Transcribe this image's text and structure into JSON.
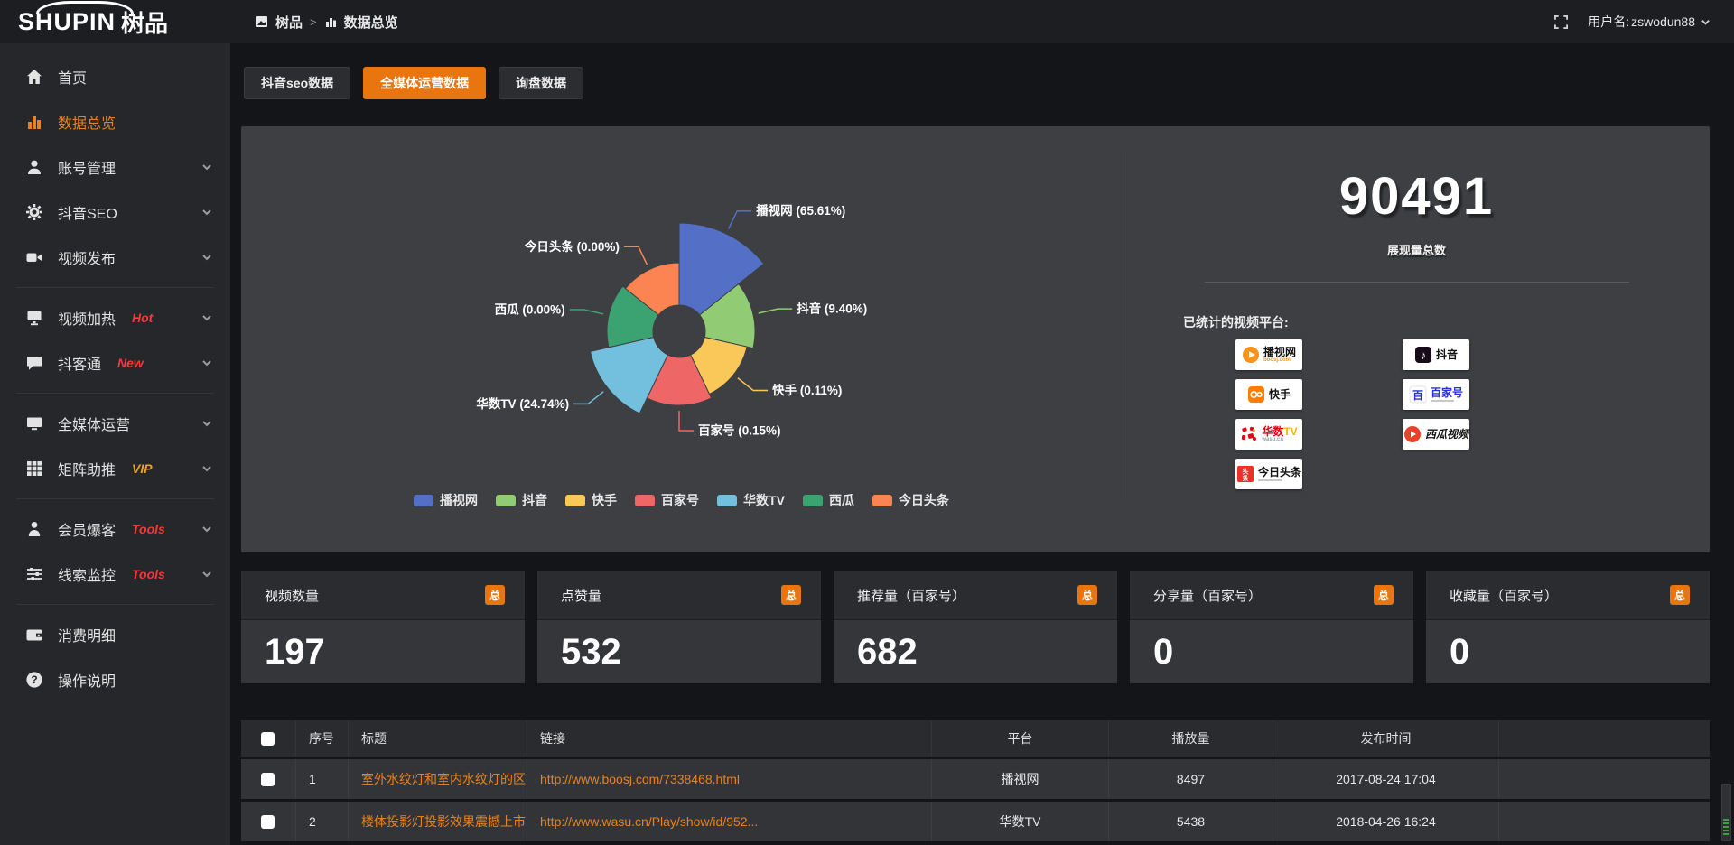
{
  "topbar": {
    "logo_main": "SHUPIN",
    "logo_cn": "树品",
    "breadcrumb": [
      "树品",
      "数据总览"
    ],
    "username_label": "用户名: ",
    "username": "zswodun88"
  },
  "sidebar": {
    "items": [
      {
        "icon": "home",
        "label": "首页"
      },
      {
        "icon": "chart",
        "label": "数据总览",
        "active": true
      },
      {
        "icon": "user",
        "label": "账号管理",
        "chevron": true
      },
      {
        "icon": "gear",
        "label": "抖音SEO",
        "chevron": true
      },
      {
        "icon": "video",
        "label": "视频发布",
        "chevron": true,
        "divider_after": true
      },
      {
        "icon": "screen",
        "label": "视频加热",
        "badge": "Hot",
        "badge_color": "#f23a3a",
        "chevron": true
      },
      {
        "icon": "chat",
        "label": "抖客通",
        "badge": "New",
        "badge_color": "#f23a3a",
        "chevron": true,
        "divider_after": true
      },
      {
        "icon": "monitor",
        "label": "全媒体运营",
        "chevron": true
      },
      {
        "icon": "grid",
        "label": "矩阵助推",
        "badge": "VIP",
        "badge_color": "#f0a020",
        "chevron": true,
        "divider_after": true
      },
      {
        "icon": "person",
        "label": "会员爆客",
        "badge": "Tools",
        "badge_color": "#f23a3a",
        "chevron": true
      },
      {
        "icon": "sliders",
        "label": "线索监控",
        "badge": "Tools",
        "badge_color": "#f23a3a",
        "chevron": true,
        "divider_after": true
      },
      {
        "icon": "wallet",
        "label": "消费明细"
      },
      {
        "icon": "help",
        "label": "操作说明"
      }
    ]
  },
  "tabs": [
    {
      "label": "抖音seo数据",
      "active": false
    },
    {
      "label": "全媒体运营数据",
      "active": true
    },
    {
      "label": "询盘数据",
      "active": false
    }
  ],
  "chart_data": {
    "type": "pie",
    "rose": true,
    "legend_position": "bottom",
    "items": [
      {
        "name": "播视网",
        "value": 65.61,
        "color": "#5470c6",
        "radius": 120
      },
      {
        "name": "抖音",
        "value": 9.4,
        "color": "#91cc75",
        "radius": 84
      },
      {
        "name": "快手",
        "value": 0.11,
        "color": "#fac858",
        "radius": 77
      },
      {
        "name": "百家号",
        "value": 0.15,
        "color": "#ee6666",
        "radius": 82
      },
      {
        "name": "华数TV",
        "value": 24.74,
        "color": "#73c0de",
        "radius": 101
      },
      {
        "name": "西瓜",
        "value": 0.0,
        "color": "#3ba272",
        "radius": 80
      },
      {
        "name": "今日头条",
        "value": 0.0,
        "color": "#fc8452",
        "radius": 76
      }
    ]
  },
  "overview": {
    "total": "90491",
    "total_caption": "展现量总数",
    "platforms_title": "已统计的视频平台:",
    "platform_cols": [
      [
        {
          "id": "boosj",
          "label": "播视网",
          "label_color": "#111111",
          "sub": "boosj.com",
          "sub_color": "#f7941d"
        },
        {
          "id": "kuaishou",
          "label": "快手",
          "label_color": "#111111"
        },
        {
          "id": "wasu",
          "label_parts": [
            {
              "text": "华数",
              "color": "#e60012"
            },
            {
              "text": "TV",
              "color": "#f5b301"
            }
          ],
          "sub": "wasu.cn",
          "sub_color": "#9aa0a6"
        },
        {
          "id": "toutiao",
          "label": "今日头条",
          "label_color": "#111111",
          "fine_print": true
        }
      ],
      [
        {
          "id": "douyin",
          "label": "抖音",
          "label_color": "#111111"
        },
        {
          "id": "baijia",
          "label": "百家号",
          "label_color": "#2932e1",
          "fine_print": true
        },
        {
          "id": "xigua",
          "label": "西瓜视频",
          "label_color": "#111111",
          "italic": true
        }
      ]
    ]
  },
  "stat_cards": [
    {
      "title": "视频数量",
      "badge": "总",
      "value": "197"
    },
    {
      "title": "点赞量",
      "badge": "总",
      "value": "532"
    },
    {
      "title": "推荐量（百家号）",
      "badge": "总",
      "value": "682"
    },
    {
      "title": "分享量（百家号）",
      "badge": "总",
      "value": "0"
    },
    {
      "title": "收藏量（百家号）",
      "badge": "总",
      "value": "0"
    }
  ],
  "table": {
    "headers": [
      "序号",
      "标题",
      "链接",
      "平台",
      "播放量",
      "发布时间"
    ],
    "rows": [
      {
        "no": "1",
        "title": "室外水纹灯和室内水纹灯的区别和简介",
        "link": "http://www.boosj.com/7338468.html",
        "platform": "播视网",
        "views": "8497",
        "time": "2017-08-24 17:04"
      },
      {
        "no": "2",
        "title": "楼体投影灯投影效果震撼上市",
        "link": "http://www.wasu.cn/Play/show/id/952...",
        "platform": "华数TV",
        "views": "5438",
        "time": "2018-04-26 16:24"
      }
    ]
  }
}
